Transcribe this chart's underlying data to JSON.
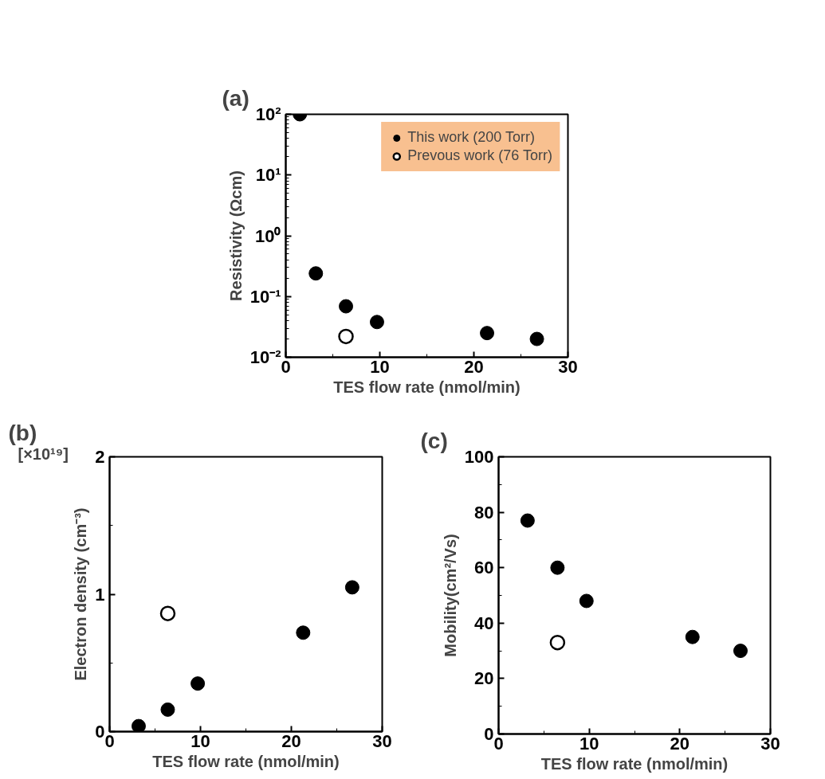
{
  "chart_data": [
    {
      "type": "scatter",
      "title": "(a)",
      "xlabel": "TES flow rate (nmol/min)",
      "ylabel": "Resistivity (Ωcm)",
      "log": "y",
      "grid": false,
      "legend": "top right",
      "marker": "circle",
      "xlim": [
        0,
        30
      ],
      "xticks": [
        0,
        10,
        20,
        30
      ],
      "ylim": [
        0.01,
        100
      ],
      "yticks": [
        {
          "value": 0.01,
          "label": "10⁻²"
        },
        {
          "value": 0.1,
          "label": "10⁻¹"
        },
        {
          "value": 1,
          "label": "10⁰"
        },
        {
          "value": 10,
          "label": "10¹"
        },
        {
          "value": 100,
          "label": "10²"
        }
      ],
      "series": [
        {
          "name": "This work (200 Torr)",
          "color": "#000000",
          "x": [
            1.5,
            3.2,
            6.4,
            9.7,
            21.4,
            26.7
          ],
          "values": [
            100,
            0.24,
            0.069,
            0.038,
            0.025,
            0.02
          ]
        },
        {
          "name": "Prevous work (76 Torr)",
          "color": "#ffffff",
          "x": [
            6.4
          ],
          "values": [
            0.022
          ]
        }
      ]
    },
    {
      "type": "scatter",
      "title": "(b)",
      "xlabel": "TES flow rate (nmol/min)",
      "ylabel": "Electron density (cm⁻³)",
      "annotations": [
        "[×10¹⁹]"
      ],
      "grid": false,
      "marker": "circle",
      "xlim": [
        0,
        30
      ],
      "xticks": [
        0,
        10,
        20,
        30
      ],
      "ylim": [
        0,
        2
      ],
      "yticks": [
        0,
        1,
        2
      ],
      "series": [
        {
          "color": "#000000",
          "x": [
            3.2,
            6.4,
            9.7,
            21.3,
            26.7
          ],
          "values": [
            0.04,
            0.16,
            0.35,
            0.72,
            1.05
          ]
        },
        {
          "color": "#ffffff",
          "x": [
            6.4
          ],
          "values": [
            0.86
          ]
        }
      ]
    },
    {
      "type": "scatter",
      "title": "(c)",
      "xlabel": "TES flow rate (nmol/min)",
      "ylabel": "Mobility(cm²/Vs)",
      "grid": false,
      "marker": "circle",
      "xlim": [
        0,
        30
      ],
      "xticks": [
        0,
        10,
        20,
        30
      ],
      "ylim": [
        0,
        100
      ],
      "yticks": [
        0,
        20,
        40,
        60,
        80,
        100
      ],
      "series": [
        {
          "color": "#000000",
          "x": [
            3.2,
            6.5,
            9.7,
            21.4,
            26.7
          ],
          "values": [
            77,
            60,
            48,
            35,
            30
          ]
        },
        {
          "color": "#ffffff",
          "x": [
            6.5
          ],
          "values": [
            33
          ]
        }
      ]
    }
  ]
}
